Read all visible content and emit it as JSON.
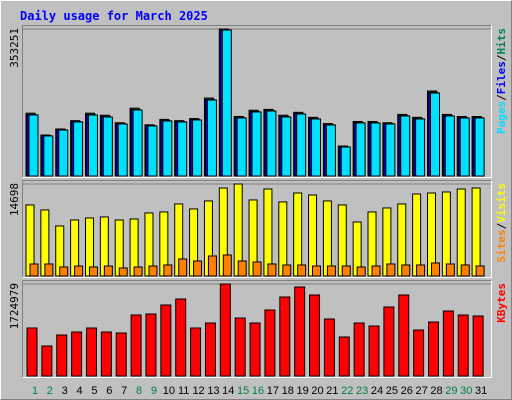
{
  "chart_data": [
    {
      "type": "bar",
      "title": "Daily usage for March 2025",
      "categories": [
        "1",
        "2",
        "3",
        "4",
        "5",
        "6",
        "7",
        "8",
        "9",
        "10",
        "11",
        "12",
        "13",
        "14",
        "15",
        "16",
        "17",
        "18",
        "19",
        "20",
        "21",
        "22",
        "23",
        "24",
        "25",
        "26",
        "27",
        "28",
        "29",
        "30",
        "31"
      ],
      "category_colors": [
        "#008040",
        "#008040",
        "#000000",
        "#000000",
        "#000000",
        "#000000",
        "#000000",
        "#008040",
        "#008040",
        "#000000",
        "#000000",
        "#000000",
        "#000000",
        "#000000",
        "#008040",
        "#008040",
        "#000000",
        "#000000",
        "#000000",
        "#000000",
        "#000000",
        "#008040",
        "#008040",
        "#000000",
        "#000000",
        "#000000",
        "#000000",
        "#000000",
        "#008040",
        "#008040",
        "#000000"
      ],
      "legend_separator": "/",
      "ylim": [
        0,
        353251
      ],
      "yticks": [
        353251
      ],
      "series": [
        {
          "name": "Hits",
          "color": "#00805c",
          "values": [
            151000,
            98500,
            113000,
            133000,
            151000,
            146000,
            128000,
            163000,
            123000,
            136000,
            133000,
            138000,
            187400,
            353251,
            143000,
            158000,
            160000,
            146000,
            153000,
            141000,
            126000,
            72000,
            131000,
            131000,
            128000,
            148000,
            141000,
            204300,
            148000,
            143000,
            143000
          ]
        },
        {
          "name": "Files",
          "color": "#0000ff",
          "values": [
            148000,
            97300,
            111600,
            131000,
            148000,
            143200,
            126200,
            160000,
            121400,
            133500,
            131000,
            136000,
            184000,
            351500,
            140800,
            155300,
            157700,
            143200,
            150500,
            138400,
            123800,
            70400,
            128700,
            128700,
            126200,
            145600,
            138400,
            201300,
            145600,
            140800,
            140800
          ]
        },
        {
          "name": "Pages",
          "color": "#00e0ff",
          "values": [
            146600,
            96100,
            110500,
            129800,
            146600,
            141800,
            125000,
            158600,
            120200,
            132200,
            129800,
            134600,
            182600,
            350800,
            139400,
            153800,
            156200,
            141800,
            149000,
            137000,
            122600,
            69700,
            127400,
            127400,
            125000,
            144200,
            137000,
            199400,
            144200,
            139400,
            139400
          ]
        }
      ]
    },
    {
      "type": "bar",
      "legend_separator": "/",
      "ylim": [
        0,
        14698
      ],
      "yticks": [
        14698
      ],
      "series": [
        {
          "name": "Visits",
          "color": "#ffff00",
          "values": [
            11350,
            10550,
            7990,
            8950,
            9270,
            9430,
            8950,
            9110,
            10070,
            10230,
            11510,
            10710,
            11990,
            14060,
            14698,
            12150,
            13900,
            11830,
            13260,
            12940,
            11990,
            11350,
            8630,
            10230,
            10870,
            11510,
            13100,
            13260,
            13420,
            13900,
            14060
          ]
        },
        {
          "name": "Sites",
          "color": "#ff8000",
          "values": [
            1920,
            1920,
            1440,
            1600,
            1440,
            1600,
            1280,
            1440,
            1600,
            1760,
            2720,
            2400,
            3200,
            3360,
            2400,
            2240,
            1920,
            1760,
            1760,
            1600,
            1600,
            1600,
            1440,
            1600,
            1920,
            1760,
            1760,
            2080,
            1920,
            1760,
            1600
          ]
        }
      ]
    },
    {
      "type": "bar",
      "ylim": [
        0,
        1724979
      ],
      "yticks": [
        1724979
      ],
      "series": [
        {
          "name": "KBytes",
          "color": "#ff0000",
          "values": [
            900000,
            562500,
            768800,
            825000,
            900000,
            825000,
            806300,
            1143800,
            1162500,
            1331300,
            1443800,
            900000,
            993800,
            1724979,
            1087500,
            993800,
            1237500,
            1481300,
            1668800,
            1518800,
            1068800,
            731300,
            993800,
            937500,
            1293800,
            1518800,
            862500,
            1012500,
            1218800,
            1143800,
            1125000
          ]
        }
      ]
    }
  ]
}
